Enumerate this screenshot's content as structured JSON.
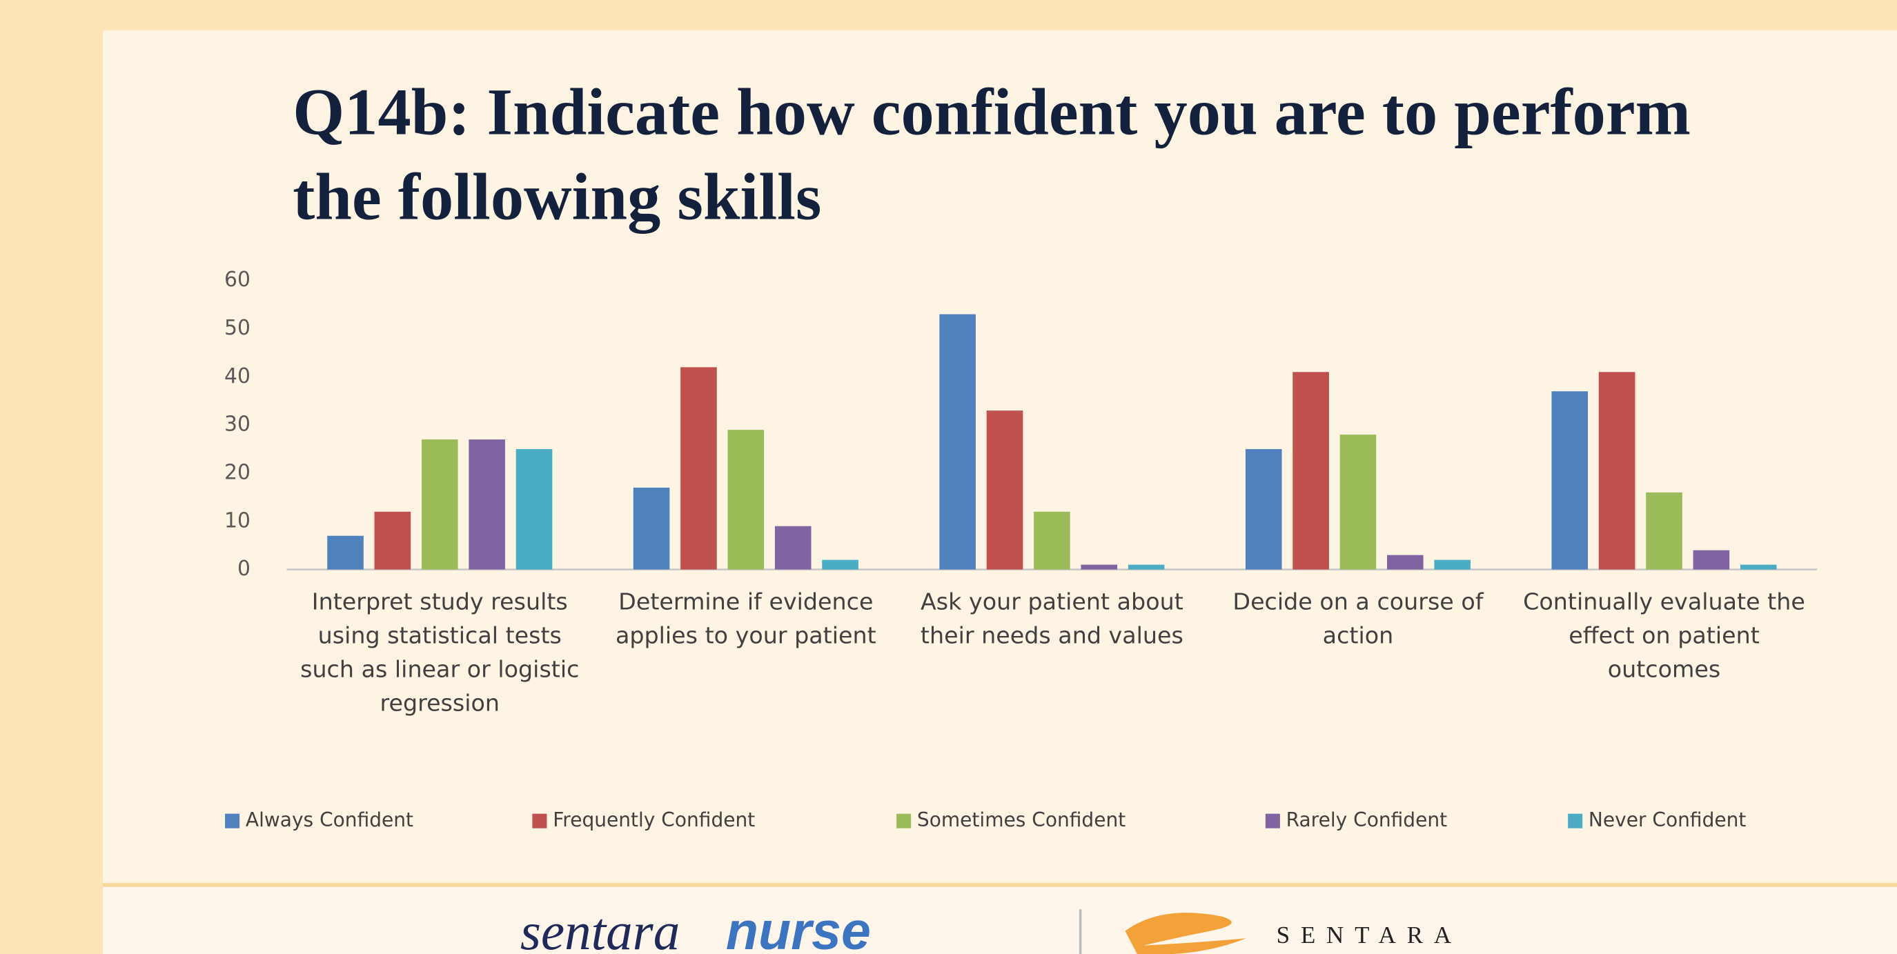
{
  "chart_data": {
    "type": "bar",
    "title": "Q14b: Indicate how confident you are to perform the following skills",
    "categories": [
      "Interpret study results using statistical tests such as linear or logistic regression",
      "Determine if evidence applies to your patient",
      "Ask your patient about their needs and values",
      "Decide on a course of action",
      "Continually evaluate the effect on patient outcomes"
    ],
    "series": [
      {
        "name": "Always Confident",
        "color": "#4f81bd",
        "values": [
          7,
          17,
          53,
          25,
          37
        ]
      },
      {
        "name": "Frequently Confident",
        "color": "#c0504d",
        "values": [
          12,
          42,
          33,
          41,
          41
        ]
      },
      {
        "name": "Sometimes Confident",
        "color": "#9bbb59",
        "values": [
          27,
          29,
          12,
          28,
          16
        ]
      },
      {
        "name": "Rarely Confident",
        "color": "#8064a2",
        "values": [
          27,
          9,
          1,
          3,
          4
        ]
      },
      {
        "name": "Never Confident",
        "color": "#4bacc6",
        "values": [
          25,
          2,
          1,
          2,
          1
        ]
      }
    ],
    "ylim": [
      0,
      60
    ],
    "yticks": [
      0,
      10,
      20,
      30,
      40,
      50,
      60
    ],
    "grid": false,
    "legend": "bottom"
  },
  "footer": {
    "logo_first": "sentara",
    "logo_second": "nurse",
    "brand": "SENTARA"
  }
}
